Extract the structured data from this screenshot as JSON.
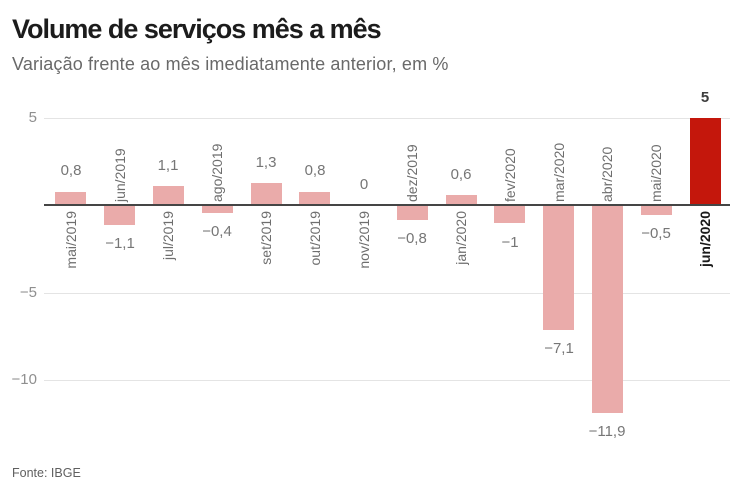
{
  "title": "Volume de serviços mês a mês",
  "subtitle": "Variação frente ao mês imediatamente anterior, em %",
  "source": "Fonte: IBGE",
  "colors": {
    "bar": "#eaabaa",
    "bar_highlight": "#c4170c",
    "axis_line": "#454545",
    "gridline": "#e4e4e4",
    "title_text": "#1c1c1c",
    "subtitle_text": "#696969",
    "y_tick_text": "#8f8f8f",
    "value_label_text": "#767676",
    "value_label_highlight_text": "#3d3d3d",
    "month_label_text": "#6e6e6e",
    "month_label_highlight_text": "#1a1a1a",
    "source_text": "#5f5f5f"
  },
  "chart_data": {
    "type": "bar",
    "title": "Volume de serviços mês a mês",
    "subtitle": "Variação frente ao mês imediatamente anterior, em %",
    "xlabel": "",
    "ylabel": "",
    "categories": [
      "mai/2019",
      "jun/2019",
      "jul/2019",
      "ago/2019",
      "set/2019",
      "out/2019",
      "nov/2019",
      "dez/2019",
      "jan/2020",
      "fev/2020",
      "mar/2020",
      "abr/2020",
      "mai/2020",
      "jun/2020"
    ],
    "values": [
      0.8,
      -1.1,
      1.1,
      -0.4,
      1.3,
      0.8,
      0,
      -0.8,
      0.6,
      -1,
      -7.1,
      -11.9,
      -0.5,
      5
    ],
    "value_labels": [
      "0,8",
      "−1,1",
      "1,1",
      "−0,4",
      "1,3",
      "0,8",
      "0",
      "−0,8",
      "0,6",
      "−1",
      "−7,1",
      "−11,9",
      "−0,5",
      "5"
    ],
    "highlight_index": 13,
    "yticks": [
      5,
      -5,
      -10
    ],
    "ytick_labels": [
      "5",
      "−5",
      "−10"
    ],
    "ylim": [
      -13.5,
      6.2
    ],
    "grid": true,
    "legend": false,
    "source": "Fonte: IBGE"
  }
}
